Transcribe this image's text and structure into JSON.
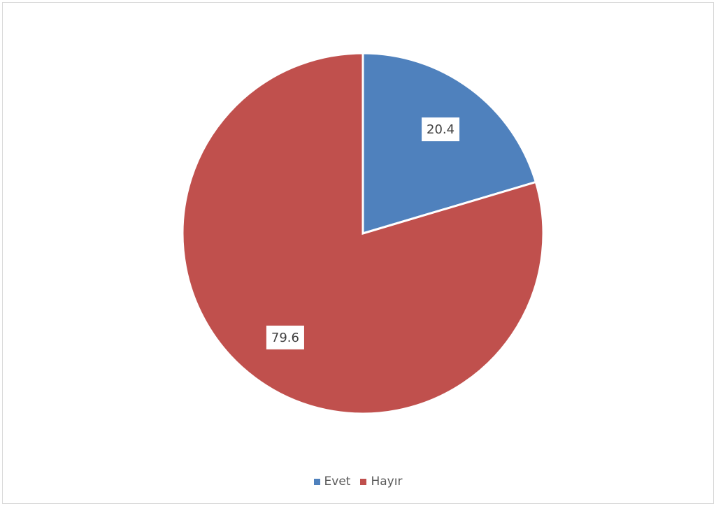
{
  "chart_data": {
    "type": "pie",
    "categories": [
      "Evet",
      "Hayır"
    ],
    "values": [
      20.4,
      79.6
    ],
    "data_labels": [
      "20.4",
      "79.6"
    ],
    "colors": [
      "#4f81bd",
      "#c0504d"
    ],
    "legend_position": "bottom",
    "title": ""
  }
}
